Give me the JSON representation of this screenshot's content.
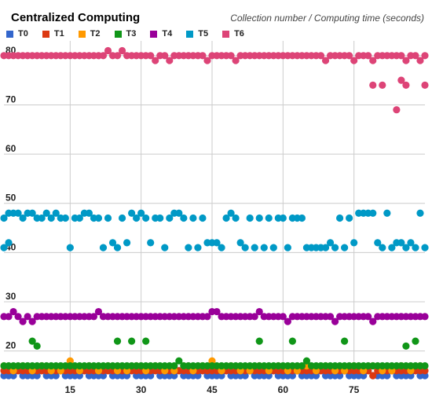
{
  "chart_data": {
    "type": "scatter",
    "title": "Centralized Computing",
    "subtitle": "Collection number / Computing time (seconds)",
    "xlabel": "",
    "ylabel": "",
    "xlim": [
      1,
      90
    ],
    "ylim": [
      15,
      83
    ],
    "xticks": [
      15,
      30,
      45,
      60,
      75
    ],
    "yticks": [
      20,
      30,
      40,
      50,
      60,
      70,
      80
    ],
    "grid": true,
    "legend_position": "top-left",
    "series": [
      {
        "name": "T0",
        "color": "#3366cc",
        "x": [
          1,
          2,
          3,
          4,
          5,
          6,
          7,
          8,
          9,
          10,
          11,
          12,
          13,
          14,
          15,
          16,
          17,
          18,
          19,
          20,
          21,
          22,
          23,
          24,
          25,
          26,
          27,
          28,
          29,
          30,
          31,
          32,
          33,
          34,
          35,
          36,
          37,
          38,
          39,
          40,
          41,
          42,
          43,
          44,
          45,
          46,
          47,
          48,
          49,
          50,
          51,
          52,
          53,
          54,
          55,
          56,
          57,
          58,
          59,
          60,
          61,
          62,
          63,
          64,
          65,
          66,
          67,
          68,
          69,
          70,
          71,
          72,
          73,
          74,
          75,
          76,
          77,
          78,
          79,
          80,
          81,
          82,
          83,
          84,
          85,
          86,
          87,
          88,
          89,
          90
        ],
        "y": [
          15,
          15,
          15,
          16,
          15,
          15,
          15,
          15,
          16,
          15,
          15,
          15,
          16,
          15,
          15,
          15,
          15,
          16,
          15,
          15,
          15,
          15,
          16,
          15,
          15,
          15,
          15,
          16,
          15,
          15,
          15,
          15,
          16,
          15,
          15,
          15,
          15,
          16,
          15,
          15,
          15,
          15,
          16,
          15,
          15,
          15,
          15,
          16,
          15,
          15,
          15,
          15,
          16,
          15,
          15,
          15,
          15,
          16,
          15,
          15,
          15,
          15,
          16,
          15,
          15,
          15,
          15,
          16,
          15,
          15,
          15,
          15,
          16,
          15,
          15,
          15,
          15,
          16,
          15,
          15,
          15,
          15,
          16,
          15,
          15,
          15,
          15,
          16,
          15,
          15
        ]
      },
      {
        "name": "T1",
        "color": "#dc3912",
        "x": [
          1,
          2,
          3,
          4,
          5,
          6,
          7,
          8,
          9,
          10,
          11,
          12,
          13,
          14,
          15,
          16,
          17,
          18,
          19,
          20,
          21,
          22,
          23,
          24,
          25,
          26,
          27,
          28,
          29,
          30,
          31,
          32,
          33,
          34,
          35,
          36,
          37,
          38,
          39,
          40,
          41,
          42,
          43,
          44,
          45,
          46,
          47,
          48,
          49,
          50,
          51,
          52,
          53,
          54,
          55,
          56,
          57,
          58,
          59,
          60,
          61,
          62,
          63,
          64,
          65,
          66,
          67,
          68,
          69,
          70,
          71,
          72,
          73,
          74,
          75,
          76,
          77,
          78,
          79,
          80,
          81,
          82,
          83,
          84,
          85,
          86,
          87,
          88,
          89,
          90
        ],
        "y": [
          16,
          16,
          16,
          16,
          16,
          16,
          16,
          16,
          16,
          16,
          16,
          16,
          16,
          16,
          16,
          16,
          16,
          16,
          16,
          16,
          16,
          16,
          16,
          16,
          16,
          16,
          16,
          16,
          16,
          16,
          16,
          16,
          16,
          16,
          16,
          16,
          16,
          16,
          16,
          16,
          16,
          16,
          16,
          16,
          16,
          16,
          16,
          16,
          16,
          16,
          16,
          16,
          16,
          16,
          16,
          16,
          16,
          16,
          16,
          16,
          16,
          16,
          16,
          16,
          16,
          16,
          16,
          16,
          16,
          16,
          16,
          16,
          16,
          16,
          16,
          16,
          16,
          16,
          15,
          16,
          16,
          16,
          16,
          16,
          16,
          16,
          16,
          16,
          16,
          16
        ]
      },
      {
        "name": "T2",
        "color": "#ff9900",
        "x": [
          1,
          3,
          5,
          7,
          9,
          11,
          13,
          15,
          17,
          19,
          21,
          23,
          25,
          27,
          29,
          31,
          33,
          35,
          37,
          39,
          41,
          43,
          45,
          47,
          49,
          51,
          53,
          55,
          57,
          59,
          61,
          63,
          65,
          67,
          69,
          71,
          73,
          75,
          77,
          79,
          81,
          83,
          85,
          87,
          89
        ],
        "y": [
          17,
          16,
          17,
          16,
          17,
          16,
          16,
          18,
          16,
          17,
          16,
          17,
          16,
          16,
          17,
          16,
          17,
          16,
          16,
          17,
          16,
          17,
          18,
          16,
          17,
          16,
          16,
          17,
          16,
          17,
          16,
          16,
          17,
          16,
          17,
          16,
          16,
          17,
          16,
          17,
          16,
          16,
          17,
          16,
          17
        ]
      },
      {
        "name": "T3",
        "color": "#109618",
        "x": [
          1,
          2,
          3,
          4,
          5,
          6,
          7,
          8,
          9,
          10,
          11,
          12,
          13,
          14,
          15,
          16,
          17,
          18,
          19,
          20,
          21,
          22,
          23,
          24,
          25,
          26,
          27,
          28,
          29,
          30,
          31,
          32,
          33,
          34,
          35,
          36,
          37,
          38,
          39,
          40,
          41,
          42,
          43,
          44,
          45,
          46,
          47,
          48,
          49,
          50,
          51,
          52,
          53,
          54,
          55,
          56,
          57,
          58,
          59,
          60,
          61,
          62,
          63,
          64,
          65,
          66,
          67,
          68,
          69,
          70,
          71,
          72,
          73,
          74,
          75,
          76,
          77,
          78,
          79,
          80,
          81,
          82,
          83,
          84,
          85,
          86,
          87,
          88,
          89,
          90,
          7,
          8,
          25,
          28,
          31,
          55,
          62,
          73,
          86,
          88
        ],
        "y": [
          17,
          17,
          17,
          17,
          17,
          17,
          17,
          17,
          17,
          17,
          17,
          17,
          17,
          17,
          17,
          17,
          17,
          17,
          17,
          17,
          17,
          17,
          17,
          17,
          17,
          17,
          17,
          17,
          17,
          17,
          17,
          17,
          17,
          17,
          17,
          17,
          17,
          18,
          17,
          17,
          17,
          17,
          17,
          17,
          17,
          17,
          17,
          17,
          17,
          17,
          17,
          17,
          17,
          17,
          17,
          17,
          17,
          17,
          17,
          17,
          17,
          17,
          17,
          17,
          18,
          17,
          17,
          17,
          17,
          17,
          17,
          17,
          17,
          17,
          17,
          17,
          17,
          17,
          17,
          17,
          17,
          17,
          17,
          17,
          17,
          17,
          17,
          17,
          17,
          17,
          22,
          21,
          22,
          22,
          22,
          22,
          22,
          22,
          21,
          22
        ]
      },
      {
        "name": "T4",
        "color": "#990099",
        "x": [
          1,
          2,
          3,
          4,
          5,
          6,
          7,
          8,
          9,
          10,
          11,
          12,
          13,
          14,
          15,
          16,
          17,
          18,
          19,
          20,
          21,
          22,
          23,
          24,
          25,
          26,
          27,
          28,
          29,
          30,
          31,
          32,
          33,
          34,
          35,
          36,
          37,
          38,
          39,
          40,
          41,
          42,
          43,
          44,
          45,
          46,
          47,
          48,
          49,
          50,
          51,
          52,
          53,
          54,
          55,
          56,
          57,
          58,
          59,
          60,
          61,
          62,
          63,
          64,
          65,
          66,
          67,
          68,
          69,
          70,
          71,
          72,
          73,
          74,
          75,
          76,
          77,
          78,
          79,
          80,
          81,
          82,
          83,
          84,
          85,
          86,
          87,
          88,
          89,
          90
        ],
        "y": [
          27,
          27,
          28,
          27,
          26,
          27,
          26,
          27,
          27,
          27,
          27,
          27,
          27,
          27,
          27,
          27,
          27,
          27,
          27,
          27,
          28,
          27,
          27,
          27,
          27,
          27,
          27,
          27,
          27,
          27,
          27,
          27,
          27,
          27,
          27,
          27,
          27,
          27,
          27,
          27,
          27,
          27,
          27,
          27,
          28,
          28,
          27,
          27,
          27,
          27,
          27,
          27,
          27,
          27,
          28,
          27,
          27,
          27,
          27,
          27,
          26,
          27,
          27,
          27,
          27,
          27,
          27,
          27,
          27,
          27,
          26,
          27,
          27,
          27,
          27,
          27,
          27,
          27,
          26,
          27,
          27,
          27,
          27,
          27,
          27,
          27,
          27,
          27,
          27,
          27
        ]
      },
      {
        "name": "T5",
        "color": "#0099c6",
        "x": [
          1,
          2,
          3,
          4,
          5,
          6,
          7,
          8,
          9,
          10,
          11,
          12,
          13,
          14,
          15,
          16,
          17,
          18,
          19,
          20,
          21,
          22,
          23,
          24,
          25,
          26,
          27,
          28,
          29,
          30,
          31,
          32,
          33,
          34,
          35,
          36,
          37,
          38,
          39,
          40,
          41,
          42,
          43,
          44,
          45,
          46,
          47,
          48,
          49,
          50,
          51,
          52,
          53,
          54,
          55,
          56,
          57,
          58,
          59,
          60,
          61,
          62,
          63,
          64,
          65,
          66,
          67,
          68,
          69,
          70,
          71,
          72,
          73,
          74,
          75,
          76,
          77,
          78,
          79,
          80,
          81,
          82,
          83,
          84,
          85,
          86,
          87,
          88,
          89,
          90,
          1,
          2
        ],
        "y": [
          47,
          48,
          48,
          48,
          47,
          48,
          48,
          47,
          47,
          48,
          47,
          48,
          47,
          47,
          41,
          47,
          47,
          48,
          48,
          47,
          47,
          41,
          47,
          42,
          41,
          47,
          42,
          48,
          47,
          48,
          47,
          42,
          47,
          47,
          41,
          47,
          48,
          48,
          47,
          41,
          47,
          41,
          47,
          42,
          42,
          42,
          41,
          47,
          48,
          47,
          42,
          41,
          47,
          41,
          47,
          41,
          47,
          41,
          47,
          47,
          41,
          47,
          47,
          47,
          41,
          41,
          41,
          41,
          41,
          42,
          41,
          47,
          41,
          47,
          42,
          48,
          48,
          48,
          48,
          42,
          41,
          48,
          41,
          42,
          42,
          41,
          42,
          41,
          48,
          41,
          41,
          42
        ]
      },
      {
        "name": "T6",
        "color": "#dd4477",
        "x": [
          1,
          2,
          3,
          4,
          5,
          6,
          7,
          8,
          9,
          10,
          11,
          12,
          13,
          14,
          15,
          16,
          17,
          18,
          19,
          20,
          21,
          22,
          23,
          24,
          25,
          26,
          27,
          28,
          29,
          30,
          31,
          32,
          33,
          34,
          35,
          36,
          37,
          38,
          39,
          40,
          41,
          42,
          43,
          44,
          45,
          46,
          47,
          48,
          49,
          50,
          51,
          52,
          53,
          54,
          55,
          56,
          57,
          58,
          59,
          60,
          61,
          62,
          63,
          64,
          65,
          66,
          67,
          68,
          69,
          70,
          71,
          72,
          73,
          74,
          75,
          76,
          77,
          78,
          79,
          80,
          81,
          82,
          83,
          84,
          85,
          86,
          87,
          88,
          89,
          90,
          79,
          81,
          84,
          85,
          86,
          90
        ],
        "y": [
          80,
          80,
          80,
          80,
          80,
          80,
          80,
          80,
          80,
          80,
          80,
          80,
          80,
          80,
          80,
          80,
          80,
          80,
          80,
          80,
          80,
          80,
          81,
          80,
          80,
          81,
          80,
          80,
          80,
          80,
          80,
          80,
          79,
          80,
          80,
          79,
          80,
          80,
          80,
          80,
          80,
          80,
          80,
          79,
          80,
          80,
          80,
          80,
          80,
          79,
          80,
          80,
          80,
          80,
          80,
          80,
          80,
          80,
          80,
          80,
          80,
          80,
          80,
          80,
          80,
          80,
          80,
          80,
          79,
          80,
          80,
          80,
          80,
          80,
          79,
          80,
          80,
          80,
          79,
          80,
          80,
          80,
          80,
          80,
          80,
          79,
          80,
          80,
          79,
          80,
          74,
          74,
          69,
          75,
          74,
          74
        ]
      }
    ]
  }
}
